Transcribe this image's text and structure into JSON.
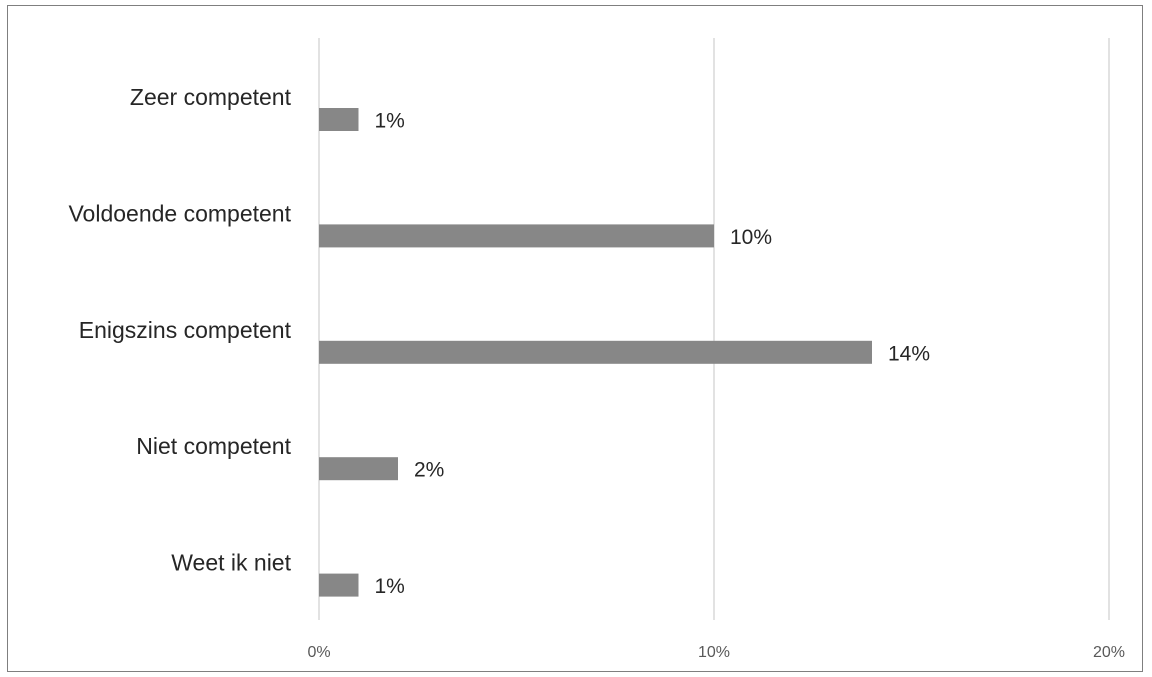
{
  "chart_data": {
    "type": "bar",
    "orientation": "horizontal",
    "categories": [
      "Zeer competent",
      "Voldoende competent",
      "Enigszins competent",
      "Niet competent",
      "Weet ik niet"
    ],
    "values": [
      1,
      10,
      14,
      2,
      1
    ],
    "data_labels": [
      "1%",
      "10%",
      "14%",
      "2%",
      "1%"
    ],
    "x_ticks": [
      0,
      10,
      20
    ],
    "x_tick_labels": [
      "0%",
      "10%",
      "20%"
    ],
    "xlim": [
      0,
      20
    ],
    "grid": true,
    "bar_color": "#878787",
    "grid_color": "#d9d9d9"
  }
}
